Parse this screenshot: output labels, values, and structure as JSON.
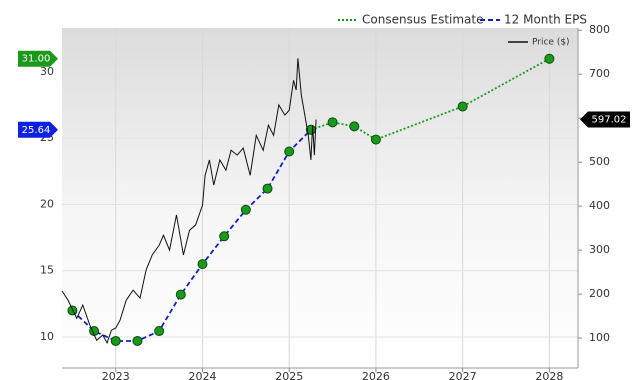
{
  "chart_data": {
    "type": "line",
    "xlim": [
      2022.38,
      2028.33
    ],
    "xticks": [
      2023,
      2024,
      2025,
      2026,
      2027,
      2028
    ],
    "ylim": [
      7.66,
      33.32
    ],
    "yticks": [
      10,
      15,
      20,
      25,
      30
    ],
    "y2lim": [
      32,
      805
    ],
    "y2ticks": [
      100,
      200,
      300,
      400,
      500,
      600,
      700,
      800
    ],
    "grid": true,
    "series": [
      {
        "name": "Consensus Estimate",
        "color": "#1a9a1a",
        "style": "dotted",
        "markers": true,
        "axis": "y",
        "x": [
          2025.25,
          2025.5,
          2025.75,
          2026,
          2027,
          2028
        ],
        "values": [
          25.64,
          26.2,
          25.9,
          24.9,
          27.4,
          31.0
        ],
        "last_label": "31.00",
        "tag_color": "#1a9a1a"
      },
      {
        "name": "12 Month EPS",
        "color": "#1020c0",
        "style": "dashed",
        "markers": true,
        "axis": "y",
        "x": [
          2022.5,
          2022.75,
          2023,
          2023.25,
          2023.5,
          2023.75,
          2024,
          2024.25,
          2024.5,
          2024.75,
          2025,
          2025.25
        ],
        "values": [
          12.0,
          10.45,
          9.7,
          9.7,
          10.45,
          13.2,
          15.5,
          17.6,
          19.6,
          21.2,
          24.0,
          25.64
        ],
        "last_label": "25.64",
        "tag_color": "#1020e0"
      },
      {
        "name": "Price ($)",
        "color": "#111111",
        "style": "solid",
        "markers": false,
        "axis": "y2",
        "x": [
          2022.38,
          2022.45,
          2022.55,
          2022.62,
          2022.7,
          2022.78,
          2022.85,
          2022.9,
          2022.95,
          2023.0,
          2023.05,
          2023.12,
          2023.2,
          2023.28,
          2023.35,
          2023.42,
          2023.5,
          2023.55,
          2023.62,
          2023.7,
          2023.78,
          2023.85,
          2023.92,
          2024.0,
          2024.03,
          2024.08,
          2024.13,
          2024.2,
          2024.27,
          2024.33,
          2024.4,
          2024.47,
          2024.55,
          2024.62,
          2024.7,
          2024.76,
          2024.82,
          2024.88,
          2024.95,
          2025.0,
          2025.05,
          2025.08,
          2025.1,
          2025.14,
          2025.18,
          2025.22,
          2025.25,
          2025.27,
          2025.29,
          2025.31
        ],
        "values": [
          207,
          186,
          145,
          175,
          130,
          95,
          107,
          89,
          118,
          123,
          141,
          186,
          209,
          191,
          255,
          289,
          311,
          334,
          300,
          380,
          289,
          345,
          357,
          402,
          470,
          505,
          448,
          505,
          482,
          527,
          516,
          532,
          470,
          561,
          527,
          584,
          561,
          630,
          607,
          618,
          686,
          664,
          736,
          652,
          607,
          561,
          505,
          584,
          516,
          597.02
        ],
        "last_label": "597.02",
        "tag_color": "#000000"
      }
    ]
  }
}
